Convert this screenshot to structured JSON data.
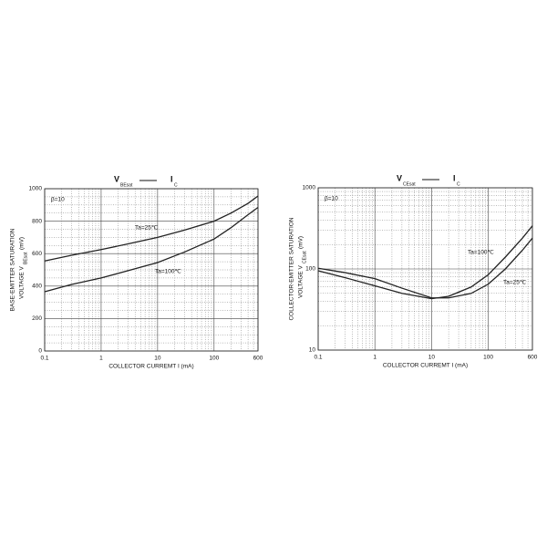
{
  "chart_data": [
    {
      "type": "line",
      "title": "V",
      "title_sub": "BEsat",
      "title_right": "I",
      "title_right_sub": "C",
      "annotation": "β=10",
      "ylabel": "BASE-EMITTER SATURATION",
      "ylabel_line2": "VOLTAGE   V",
      "ylabel_sub": "BEsat",
      "ylabel_unit": "(mV)",
      "xlabel": "COLLECTOR CURREMT I (mA)",
      "x": [
        0.1,
        0.3,
        1,
        3,
        10,
        30,
        100,
        200,
        400,
        600
      ],
      "series": [
        {
          "name": "Ta=25℃",
          "color": "#222222",
          "values": [
            555,
            590,
            625,
            660,
            700,
            745,
            800,
            850,
            910,
            955
          ]
        },
        {
          "name": "Ta=100℃",
          "color": "#222222",
          "values": [
            365,
            410,
            450,
            495,
            545,
            610,
            690,
            760,
            840,
            885
          ]
        }
      ],
      "xlog": true,
      "xlim": [
        0.1,
        600
      ],
      "xticks": [
        0.1,
        1,
        10,
        100,
        600
      ],
      "ylog": false,
      "ylim": [
        0,
        1000
      ],
      "yticks": [
        0,
        200,
        400,
        600,
        800,
        1000
      ],
      "grid": true
    },
    {
      "type": "line",
      "title": "V",
      "title_sub": "CEsat",
      "title_right": "I",
      "title_right_sub": "C",
      "annotation": "β=10",
      "ylabel": "COLLECTOR-EMITTER SATURATION",
      "ylabel_line2": "VOLTAGE   V",
      "ylabel_sub": "CEsat",
      "ylabel_unit": "(mV)",
      "xlabel": "COLLECTOR CURREMT I (mA)",
      "x": [
        0.1,
        0.3,
        1,
        3,
        10,
        20,
        50,
        100,
        200,
        400,
        600
      ],
      "series": [
        {
          "name": "Ta=100℃",
          "color": "#222222",
          "values": [
            95,
            78,
            62,
            50,
            43,
            46,
            60,
            85,
            140,
            240,
            340
          ]
        },
        {
          "name": "Ta=25℃",
          "color": "#222222",
          "values": [
            102,
            90,
            76,
            58,
            44,
            44,
            50,
            65,
            100,
            170,
            240
          ]
        }
      ],
      "xlog": true,
      "xlim": [
        0.1,
        600
      ],
      "xticks": [
        0.1,
        1,
        10,
        100,
        600
      ],
      "ylog": true,
      "ylim": [
        10,
        1000
      ],
      "yticks": [
        10,
        100,
        1000
      ],
      "grid": true
    }
  ]
}
